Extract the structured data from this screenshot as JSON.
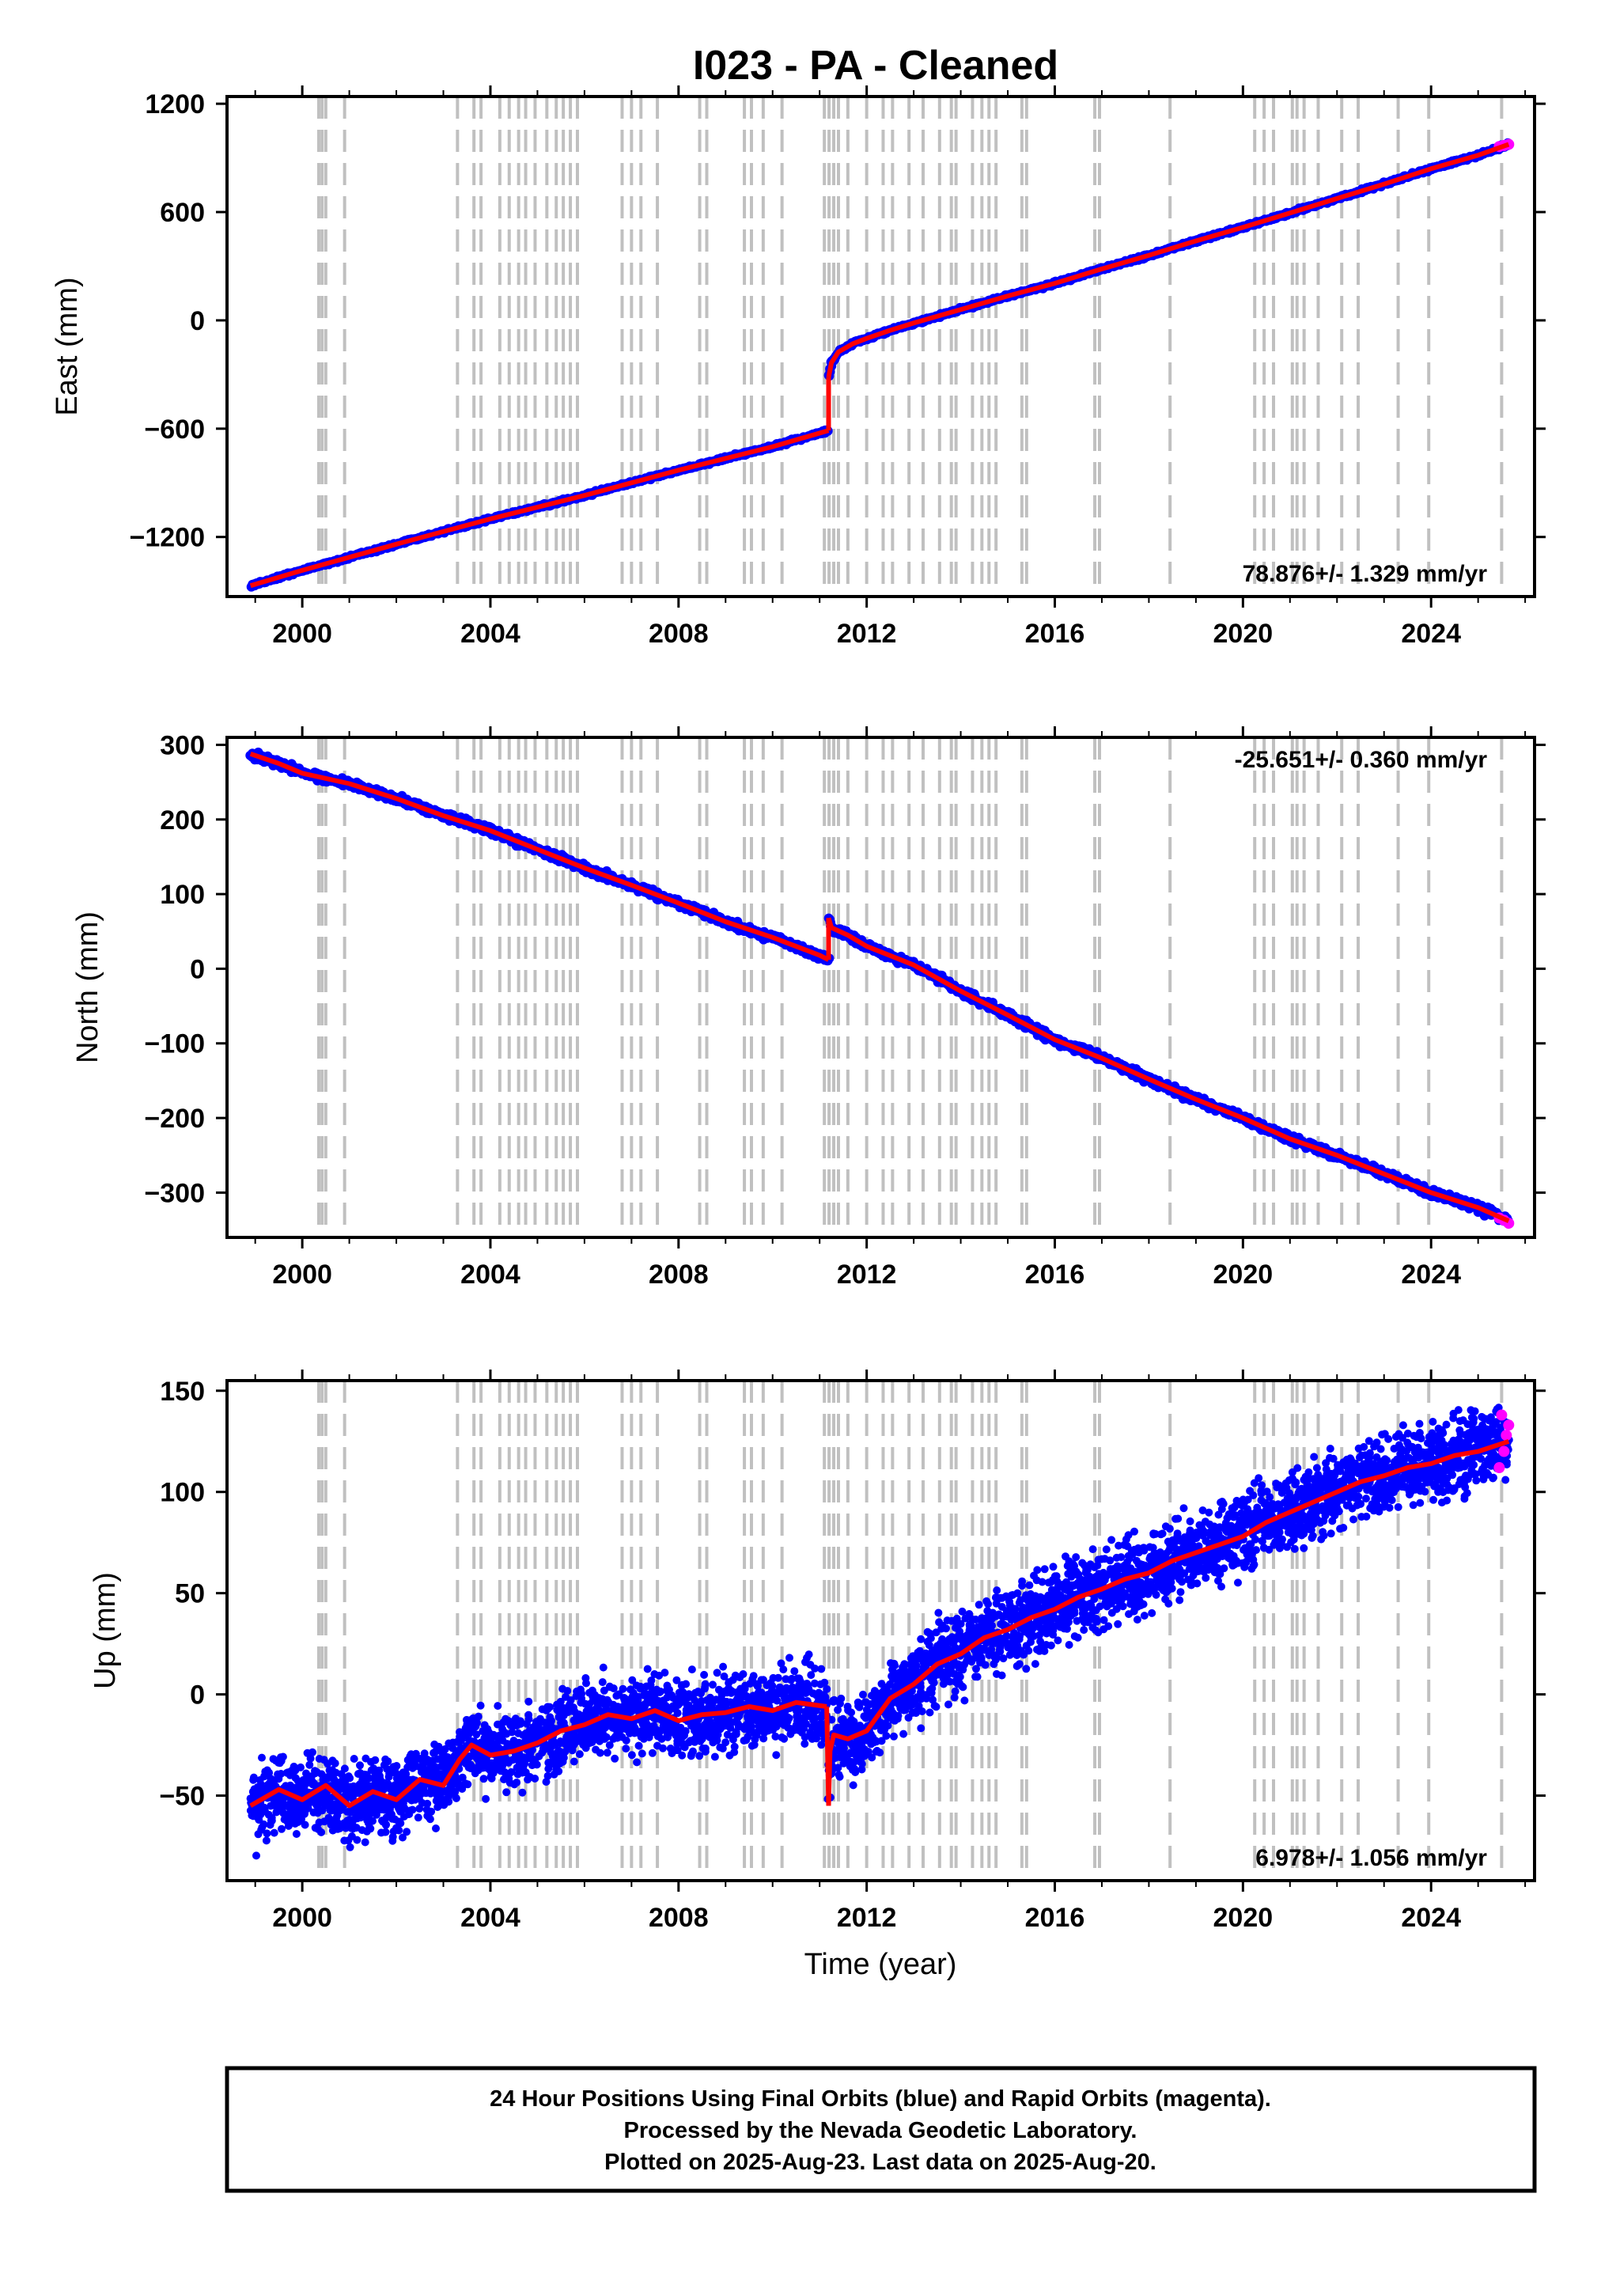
{
  "title": "I023  - PA - Cleaned",
  "colors": {
    "final": "#0000ff",
    "rapid": "#ff00ff",
    "model": "#ff0000",
    "event": "#c0c0c0",
    "frame": "#000000"
  },
  "events": [
    2000.35,
    2000.42,
    2000.5,
    2000.9,
    2003.3,
    2003.65,
    2003.8,
    2004.2,
    2004.4,
    2004.6,
    2004.75,
    2004.95,
    2005.2,
    2005.4,
    2005.55,
    2005.7,
    2005.85,
    2006.8,
    2007.0,
    2007.2,
    2007.55,
    2008.45,
    2008.6,
    2009.4,
    2009.55,
    2009.8,
    2010.2,
    2011.1,
    2011.2,
    2011.3,
    2011.4,
    2011.6,
    2012.0,
    2012.35,
    2012.55,
    2012.9,
    2013.2,
    2013.55,
    2013.8,
    2013.9,
    2014.25,
    2014.45,
    2014.6,
    2014.75,
    2015.3,
    2015.4,
    2016.85,
    2016.95,
    2018.45,
    2020.25,
    2020.45,
    2020.65,
    2021.05,
    2021.15,
    2021.3,
    2021.6,
    2022.1,
    2022.45,
    2023.3,
    2023.95,
    2025.5
  ],
  "footer": {
    "line1": "24 Hour Positions Using Final Orbits (blue) and Rapid Orbits (magenta).",
    "line2": "Processed by the Nevada Geodetic Laboratory.",
    "line3": "Plotted on 2025-Aug-23. Last data on 2025-Aug-20."
  },
  "chart_data": [
    {
      "type": "scatter",
      "component": "east",
      "ylabel": "East (mm)",
      "rate_label": "78.876+/- 1.329 mm/yr",
      "rate_position": "bottom-right",
      "xlim": [
        1998.4,
        2026.2
      ],
      "ylim": [
        -1530,
        1240
      ],
      "xticks": [
        2000,
        2004,
        2008,
        2012,
        2016,
        2020,
        2024
      ],
      "yticks": [
        1200,
        600,
        0,
        -600,
        -1200
      ],
      "ytick_labels": [
        "1200",
        "600",
        "0",
        "−600",
        "−1200"
      ],
      "series": [
        {
          "x": [
            1998.9,
            2000.0,
            2002.0,
            2004.0,
            2006.0,
            2008.0,
            2010.0,
            2011.19
          ],
          "y": [
            -1470,
            -1385,
            -1240,
            -1100,
            -970,
            -830,
            -700,
            -610
          ]
        },
        {
          "x": [
            2011.19,
            2011.25,
            2011.4,
            2011.7,
            2012.0,
            2012.5,
            2013.0,
            2014.0,
            2015.0,
            2016.0,
            2017.0,
            2018.0,
            2019.0,
            2020.0,
            2021.0,
            2022.0,
            2023.0,
            2024.0,
            2025.0,
            2025.65
          ],
          "y": [
            -315,
            -235,
            -175,
            -130,
            -100,
            -55,
            -15,
            60,
            135,
            205,
            285,
            360,
            440,
            515,
            595,
            675,
            755,
            840,
            915,
            975
          ]
        }
      ],
      "rapid": {
        "x": [
          2025.45,
          2025.55,
          2025.65
        ],
        "y": [
          963,
          969,
          975
        ]
      }
    },
    {
      "type": "scatter",
      "component": "north",
      "ylabel": "North (mm)",
      "rate_label": "-25.651+/- 0.360 mm/yr",
      "rate_position": "top-right",
      "xlim": [
        1998.4,
        2026.2
      ],
      "ylim": [
        -360,
        310
      ],
      "xticks": [
        2000,
        2004,
        2008,
        2012,
        2016,
        2020,
        2024
      ],
      "yticks": [
        300,
        200,
        100,
        0,
        -100,
        -200,
        -300
      ],
      "ytick_labels": [
        "300",
        "200",
        "100",
        "0",
        "−100",
        "−200",
        "−300"
      ],
      "series": [
        {
          "x": [
            1998.9,
            1999.5,
            2000.0,
            2001.0,
            2002.0,
            2003.0,
            2004.0,
            2005.0,
            2006.0,
            2007.0,
            2008.0,
            2009.0,
            2010.0,
            2011.0,
            2011.19
          ],
          "y": [
            288,
            275,
            262,
            248,
            228,
            205,
            185,
            160,
            135,
            112,
            88,
            63,
            42,
            18,
            12
          ]
        },
        {
          "x": [
            2011.19,
            2011.25,
            2011.6,
            2012.0,
            2013.0,
            2014.0,
            2015.0,
            2016.0,
            2017.0,
            2018.0,
            2019.0,
            2020.0,
            2021.0,
            2022.0,
            2023.0,
            2024.0,
            2025.0,
            2025.65
          ],
          "y": [
            68,
            55,
            45,
            30,
            5,
            -30,
            -62,
            -95,
            -120,
            -148,
            -175,
            -200,
            -228,
            -250,
            -275,
            -300,
            -320,
            -338
          ]
        }
      ],
      "rapid": {
        "x": [
          2025.45,
          2025.55,
          2025.65
        ],
        "y": [
          -334,
          -337,
          -341
        ]
      }
    },
    {
      "type": "scatter",
      "component": "up",
      "ylabel": "Up (mm)",
      "xlabel": "Time (year)",
      "rate_label": "6.978+/- 1.056 mm/yr",
      "rate_position": "bottom-right",
      "xlim": [
        1998.4,
        2026.2
      ],
      "ylim": [
        -92,
        155
      ],
      "xticks": [
        2000,
        2004,
        2008,
        2012,
        2016,
        2020,
        2024
      ],
      "yticks": [
        150,
        100,
        50,
        0,
        -50
      ],
      "ytick_labels": [
        "150",
        "100",
        "50",
        "0",
        "−50"
      ],
      "series": [
        {
          "x": [
            1998.9,
            1999.5,
            2000.0,
            2000.5,
            2001.0,
            2001.5,
            2002.0,
            2002.5,
            2003.0,
            2003.35,
            2003.6,
            2004.0,
            2004.5,
            2005.0,
            2005.5,
            2006.0,
            2006.5,
            2007.0,
            2007.5,
            2008.0,
            2008.5,
            2009.0,
            2009.5,
            2010.0,
            2010.5,
            2011.15
          ],
          "y": [
            -55,
            -47,
            -52,
            -45,
            -55,
            -48,
            -52,
            -42,
            -45,
            -32,
            -25,
            -30,
            -28,
            -24,
            -18,
            -15,
            -10,
            -12,
            -8,
            -13,
            -10,
            -9,
            -6,
            -8,
            -4,
            -6
          ]
        },
        {
          "x": [
            2011.19,
            2011.22,
            2011.3,
            2011.6,
            2012.0,
            2012.5,
            2013.0,
            2013.5,
            2014.0,
            2014.5,
            2015.0,
            2015.5,
            2016.0,
            2016.5,
            2017.0,
            2017.5,
            2018.0,
            2018.5,
            2019.0,
            2019.5,
            2020.0,
            2020.5,
            2021.0,
            2021.5,
            2022.0,
            2022.5,
            2023.0,
            2023.5,
            2024.0,
            2024.5,
            2025.0,
            2025.65
          ],
          "y": [
            -55,
            -28,
            -20,
            -22,
            -18,
            -2,
            5,
            15,
            20,
            28,
            32,
            38,
            42,
            48,
            52,
            57,
            60,
            66,
            70,
            74,
            78,
            85,
            90,
            95,
            100,
            105,
            108,
            112,
            114,
            118,
            120,
            125
          ]
        }
      ],
      "rapid": {
        "x": [
          2025.45,
          2025.5,
          2025.55,
          2025.6,
          2025.65
        ],
        "y": [
          112,
          138,
          120,
          128,
          133
        ]
      }
    }
  ]
}
